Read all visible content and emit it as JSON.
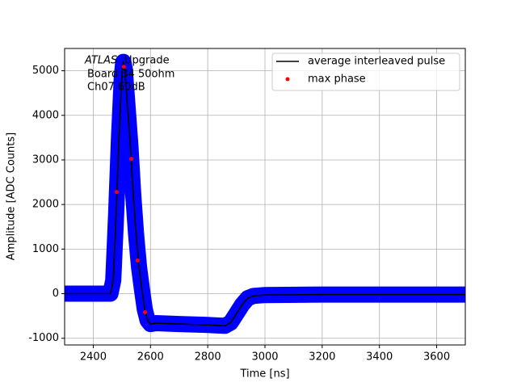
{
  "chart_data": {
    "type": "line",
    "annotation": {
      "italic": "ATLAS",
      "lines": [
        "Upgrade",
        "Board 34 50ohm",
        "Ch07 60dB"
      ]
    },
    "x_label": "Time [ns]",
    "y_label": "Amplitude [ADC Counts]",
    "xlim": [
      2300,
      3700
    ],
    "xticks": [
      2400,
      2600,
      2800,
      3000,
      3200,
      3400,
      3600
    ],
    "ylim": [
      -1150,
      5500
    ],
    "yticks": [
      -1000,
      0,
      1000,
      2000,
      3000,
      4000,
      5000
    ],
    "grid": true,
    "legend": "upper right",
    "series": [
      {
        "color": "#0000ff",
        "marker": "band",
        "x": [
          2300,
          2460,
          2470,
          2480,
          2490,
          2500,
          2505,
          2510,
          2520,
          2530,
          2540,
          2550,
          2560,
          2570,
          2580,
          2590,
          2600,
          2620,
          2700,
          2800,
          2860,
          2880,
          2900,
          2920,
          2940,
          2960,
          3000,
          3200,
          3700
        ],
        "values": [
          0,
          0,
          300,
          1800,
          3500,
          4900,
          5200,
          5050,
          4200,
          3300,
          2200,
          1300,
          600,
          100,
          -350,
          -600,
          -680,
          -660,
          -680,
          -700,
          -720,
          -650,
          -450,
          -250,
          -100,
          -50,
          -30,
          -20,
          -20
        ]
      },
      {
        "name": "average interleaved pulse",
        "color": "#000000",
        "marker": "line",
        "x": [
          2300,
          2460,
          2470,
          2480,
          2490,
          2500,
          2505,
          2510,
          2520,
          2530,
          2540,
          2550,
          2560,
          2570,
          2580,
          2590,
          2600,
          2620,
          2700,
          2800,
          2860,
          2880,
          2900,
          2920,
          2940,
          2960,
          3000,
          3200,
          3700
        ],
        "values": [
          0,
          0,
          300,
          1800,
          3500,
          4900,
          5200,
          5050,
          4200,
          3300,
          2200,
          1300,
          600,
          100,
          -350,
          -600,
          -680,
          -660,
          -680,
          -700,
          -720,
          -650,
          -450,
          -250,
          -100,
          -50,
          -30,
          -20,
          -20
        ]
      },
      {
        "name": "max phase",
        "color": "#ff0000",
        "marker": "dot",
        "x": [
          2482,
          2507,
          2533,
          2555,
          2581
        ],
        "values": [
          2280,
          5090,
          3025,
          743,
          -417
        ]
      }
    ]
  }
}
